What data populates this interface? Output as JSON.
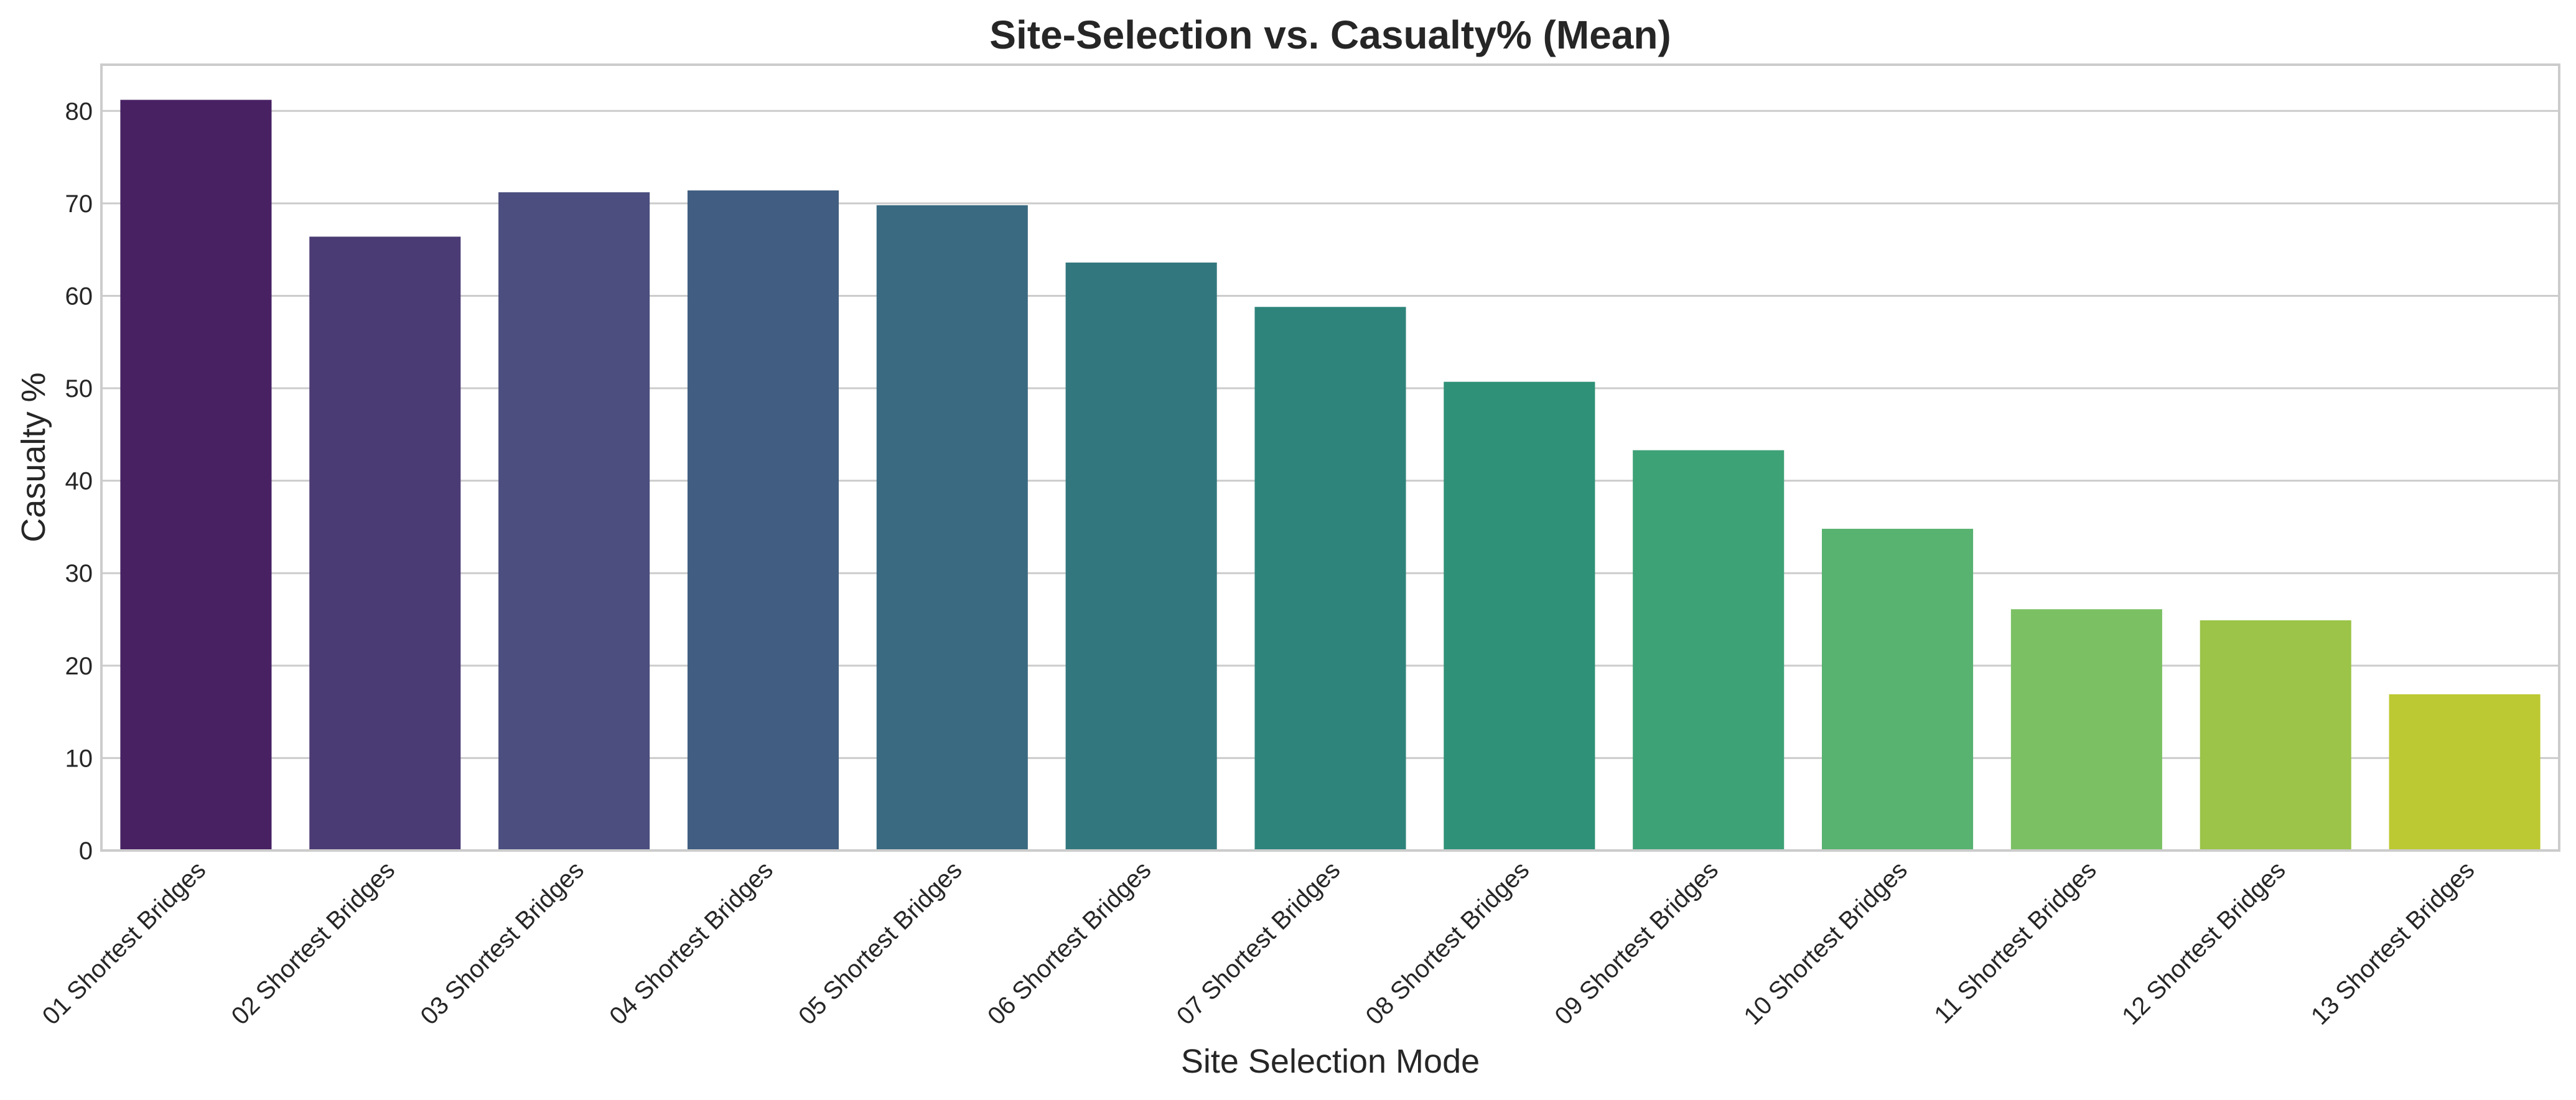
{
  "chart_data": {
    "type": "bar",
    "title": "Site-Selection vs. Casualty% (Mean)",
    "xlabel": "Site Selection Mode",
    "ylabel": "Casualty %",
    "categories": [
      "01 Shortest Bridges",
      "02 Shortest Bridges",
      "03 Shortest Bridges",
      "04 Shortest Bridges",
      "05 Shortest Bridges",
      "06 Shortest Bridges",
      "07 Shortest Bridges",
      "08 Shortest Bridges",
      "09 Shortest Bridges",
      "10 Shortest Bridges",
      "11 Shortest Bridges",
      "12 Shortest Bridges",
      "13 Shortest Bridges"
    ],
    "values": [
      81.2,
      66.4,
      71.2,
      71.4,
      69.8,
      63.6,
      58.8,
      50.7,
      43.3,
      34.8,
      26.1,
      24.9,
      16.9
    ],
    "colors": [
      "#482163",
      "#4a3b74",
      "#4b4e7f",
      "#415d81",
      "#3a6a81",
      "#33777e",
      "#2e847b",
      "#2f9178",
      "#3ea277",
      "#58b270",
      "#7bc164",
      "#9bc448",
      "#bcc932"
    ],
    "ylim": [
      0,
      85
    ],
    "yticks": [
      0,
      10,
      20,
      30,
      40,
      50,
      60,
      70,
      80
    ],
    "grid": true,
    "legend": "none"
  }
}
